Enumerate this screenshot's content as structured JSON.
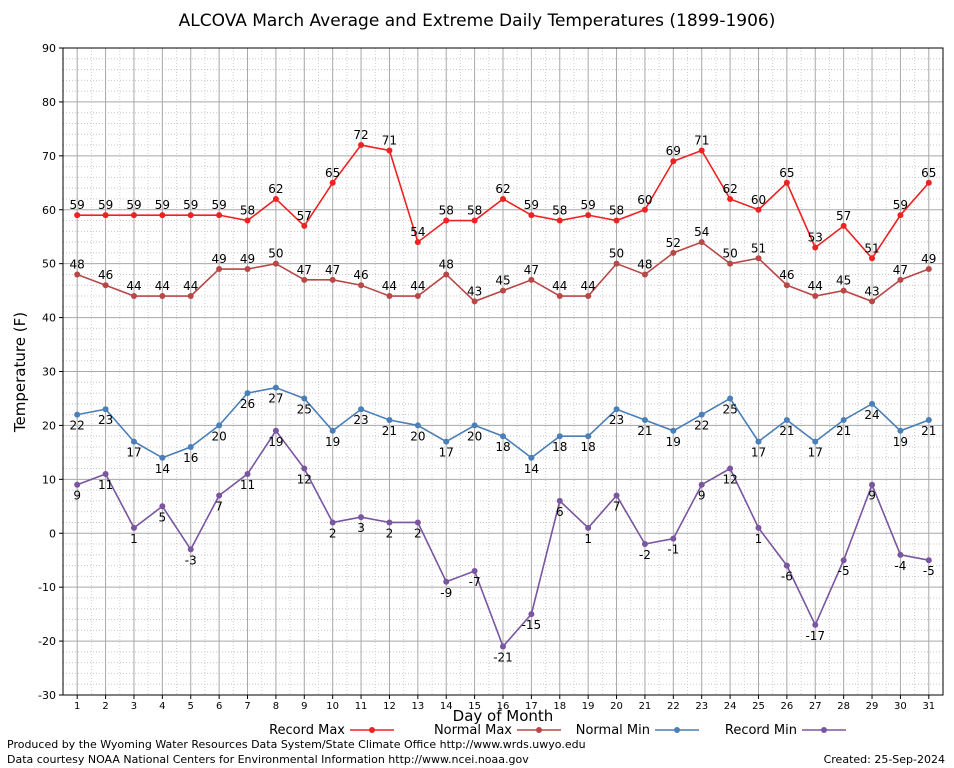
{
  "chart_data": {
    "type": "line",
    "title": "ALCOVA March Average and Extreme Daily Temperatures (1899-1906)",
    "xlabel": "Day of Month",
    "ylabel": "Temperature (F)",
    "ylim": [
      -30,
      90
    ],
    "yticks": [
      -30,
      -20,
      -10,
      0,
      10,
      20,
      30,
      40,
      50,
      60,
      70,
      80,
      90
    ],
    "x": [
      1,
      2,
      3,
      4,
      5,
      6,
      7,
      8,
      9,
      10,
      11,
      12,
      13,
      14,
      15,
      16,
      17,
      18,
      19,
      20,
      21,
      22,
      23,
      24,
      25,
      26,
      27,
      28,
      29,
      30,
      31
    ],
    "grid": true,
    "legend_position": "bottom",
    "series": [
      {
        "name": "Record Max",
        "color": "#ee2222",
        "label_pos": "above",
        "values": [
          59,
          59,
          59,
          59,
          59,
          59,
          58,
          62,
          57,
          65,
          72,
          71,
          54,
          58,
          58,
          62,
          59,
          58,
          59,
          58,
          60,
          69,
          71,
          62,
          60,
          65,
          53,
          57,
          51,
          59,
          65
        ]
      },
      {
        "name": "Normal Max",
        "color": "#b84848",
        "label_pos": "above",
        "values": [
          48,
          46,
          44,
          44,
          44,
          49,
          49,
          50,
          47,
          47,
          46,
          44,
          44,
          48,
          43,
          45,
          47,
          44,
          44,
          50,
          48,
          52,
          54,
          50,
          51,
          46,
          44,
          45,
          43,
          47,
          49
        ]
      },
      {
        "name": "Normal Min",
        "color": "#4a7fb8",
        "label_pos": "below",
        "values": [
          22,
          23,
          17,
          14,
          16,
          20,
          26,
          27,
          25,
          19,
          23,
          21,
          20,
          17,
          20,
          18,
          14,
          18,
          18,
          23,
          21,
          19,
          22,
          25,
          17,
          21,
          17,
          21,
          24,
          19,
          21
        ]
      },
      {
        "name": "Record Min",
        "color": "#7a55a0",
        "label_pos": "below",
        "values": [
          9,
          11,
          1,
          5,
          -3,
          7,
          11,
          19,
          12,
          2,
          3,
          2,
          2,
          -9,
          -7,
          -21,
          -15,
          6,
          1,
          7,
          -2,
          -1,
          9,
          12,
          1,
          -6,
          -17,
          -5,
          9,
          -4,
          -5
        ]
      }
    ]
  },
  "footer": {
    "produced_by": "Produced by the Wyoming Water Resources Data System/State Climate Office http://www.wrds.uwyo.edu",
    "courtesy": "Data courtesy NOAA National Centers for Environmental Information http://www.ncei.noaa.gov",
    "created": "Created:  25-Sep-2024"
  }
}
